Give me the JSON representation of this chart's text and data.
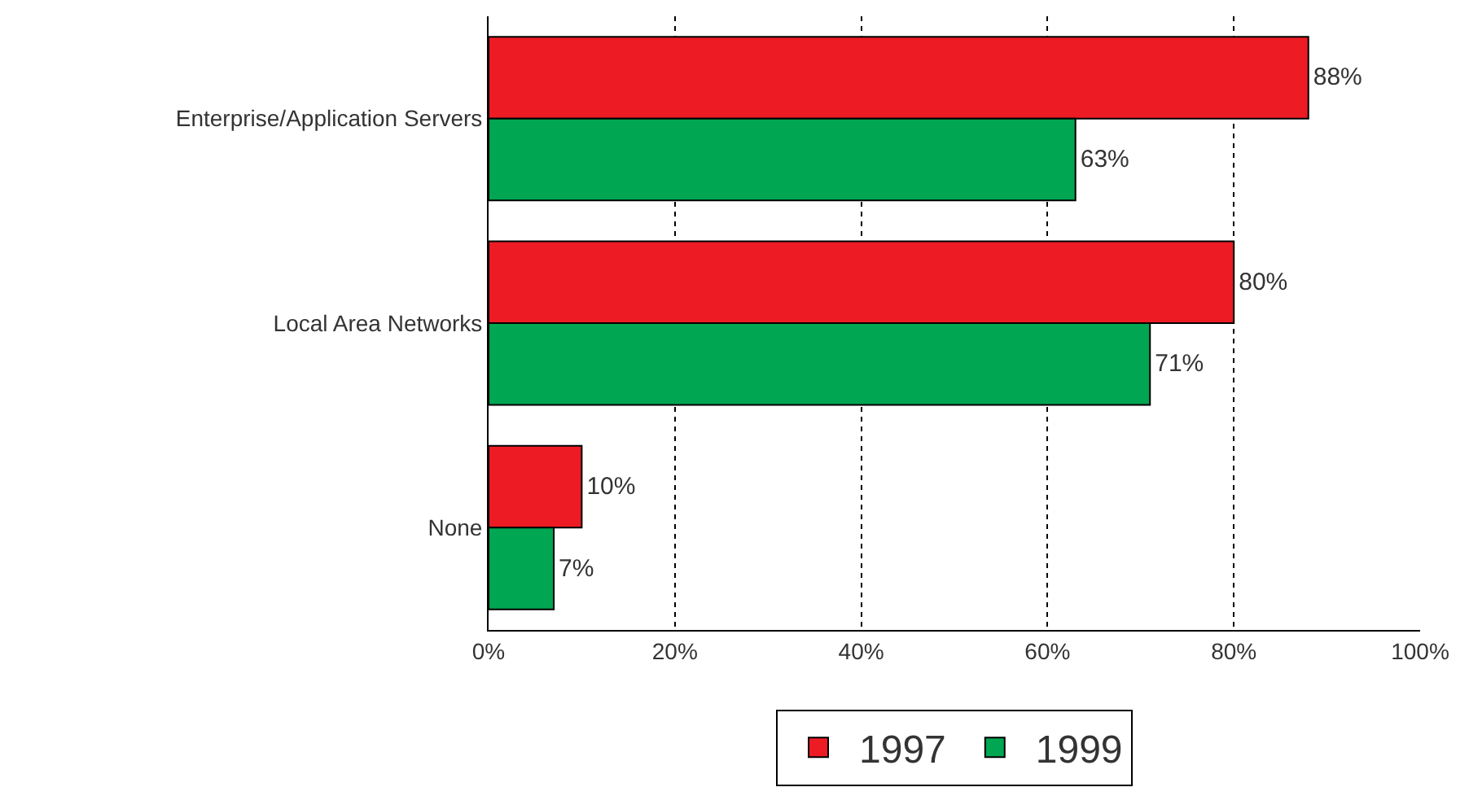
{
  "chart_data": {
    "type": "bar",
    "orientation": "horizontal",
    "categories": [
      "Enterprise/Application Servers",
      "Local Area Networks",
      "None"
    ],
    "series": [
      {
        "name": "1997",
        "color": "#ed1c24",
        "values": [
          88,
          80,
          10
        ],
        "value_labels": [
          "88%",
          "80%",
          "10%"
        ]
      },
      {
        "name": "1999",
        "color": "#00a651",
        "values": [
          63,
          71,
          7
        ],
        "value_labels": [
          "63%",
          "71%",
          "7%"
        ]
      }
    ],
    "xlim": [
      0,
      100
    ],
    "xticks": [
      {
        "value": 0,
        "label": "0%"
      },
      {
        "value": 20,
        "label": "20%"
      },
      {
        "value": 40,
        "label": "40%"
      },
      {
        "value": 60,
        "label": "60%"
      },
      {
        "value": 80,
        "label": "80%"
      },
      {
        "value": 100,
        "label": "100%"
      }
    ],
    "grid": "x",
    "legend": "bottom"
  }
}
